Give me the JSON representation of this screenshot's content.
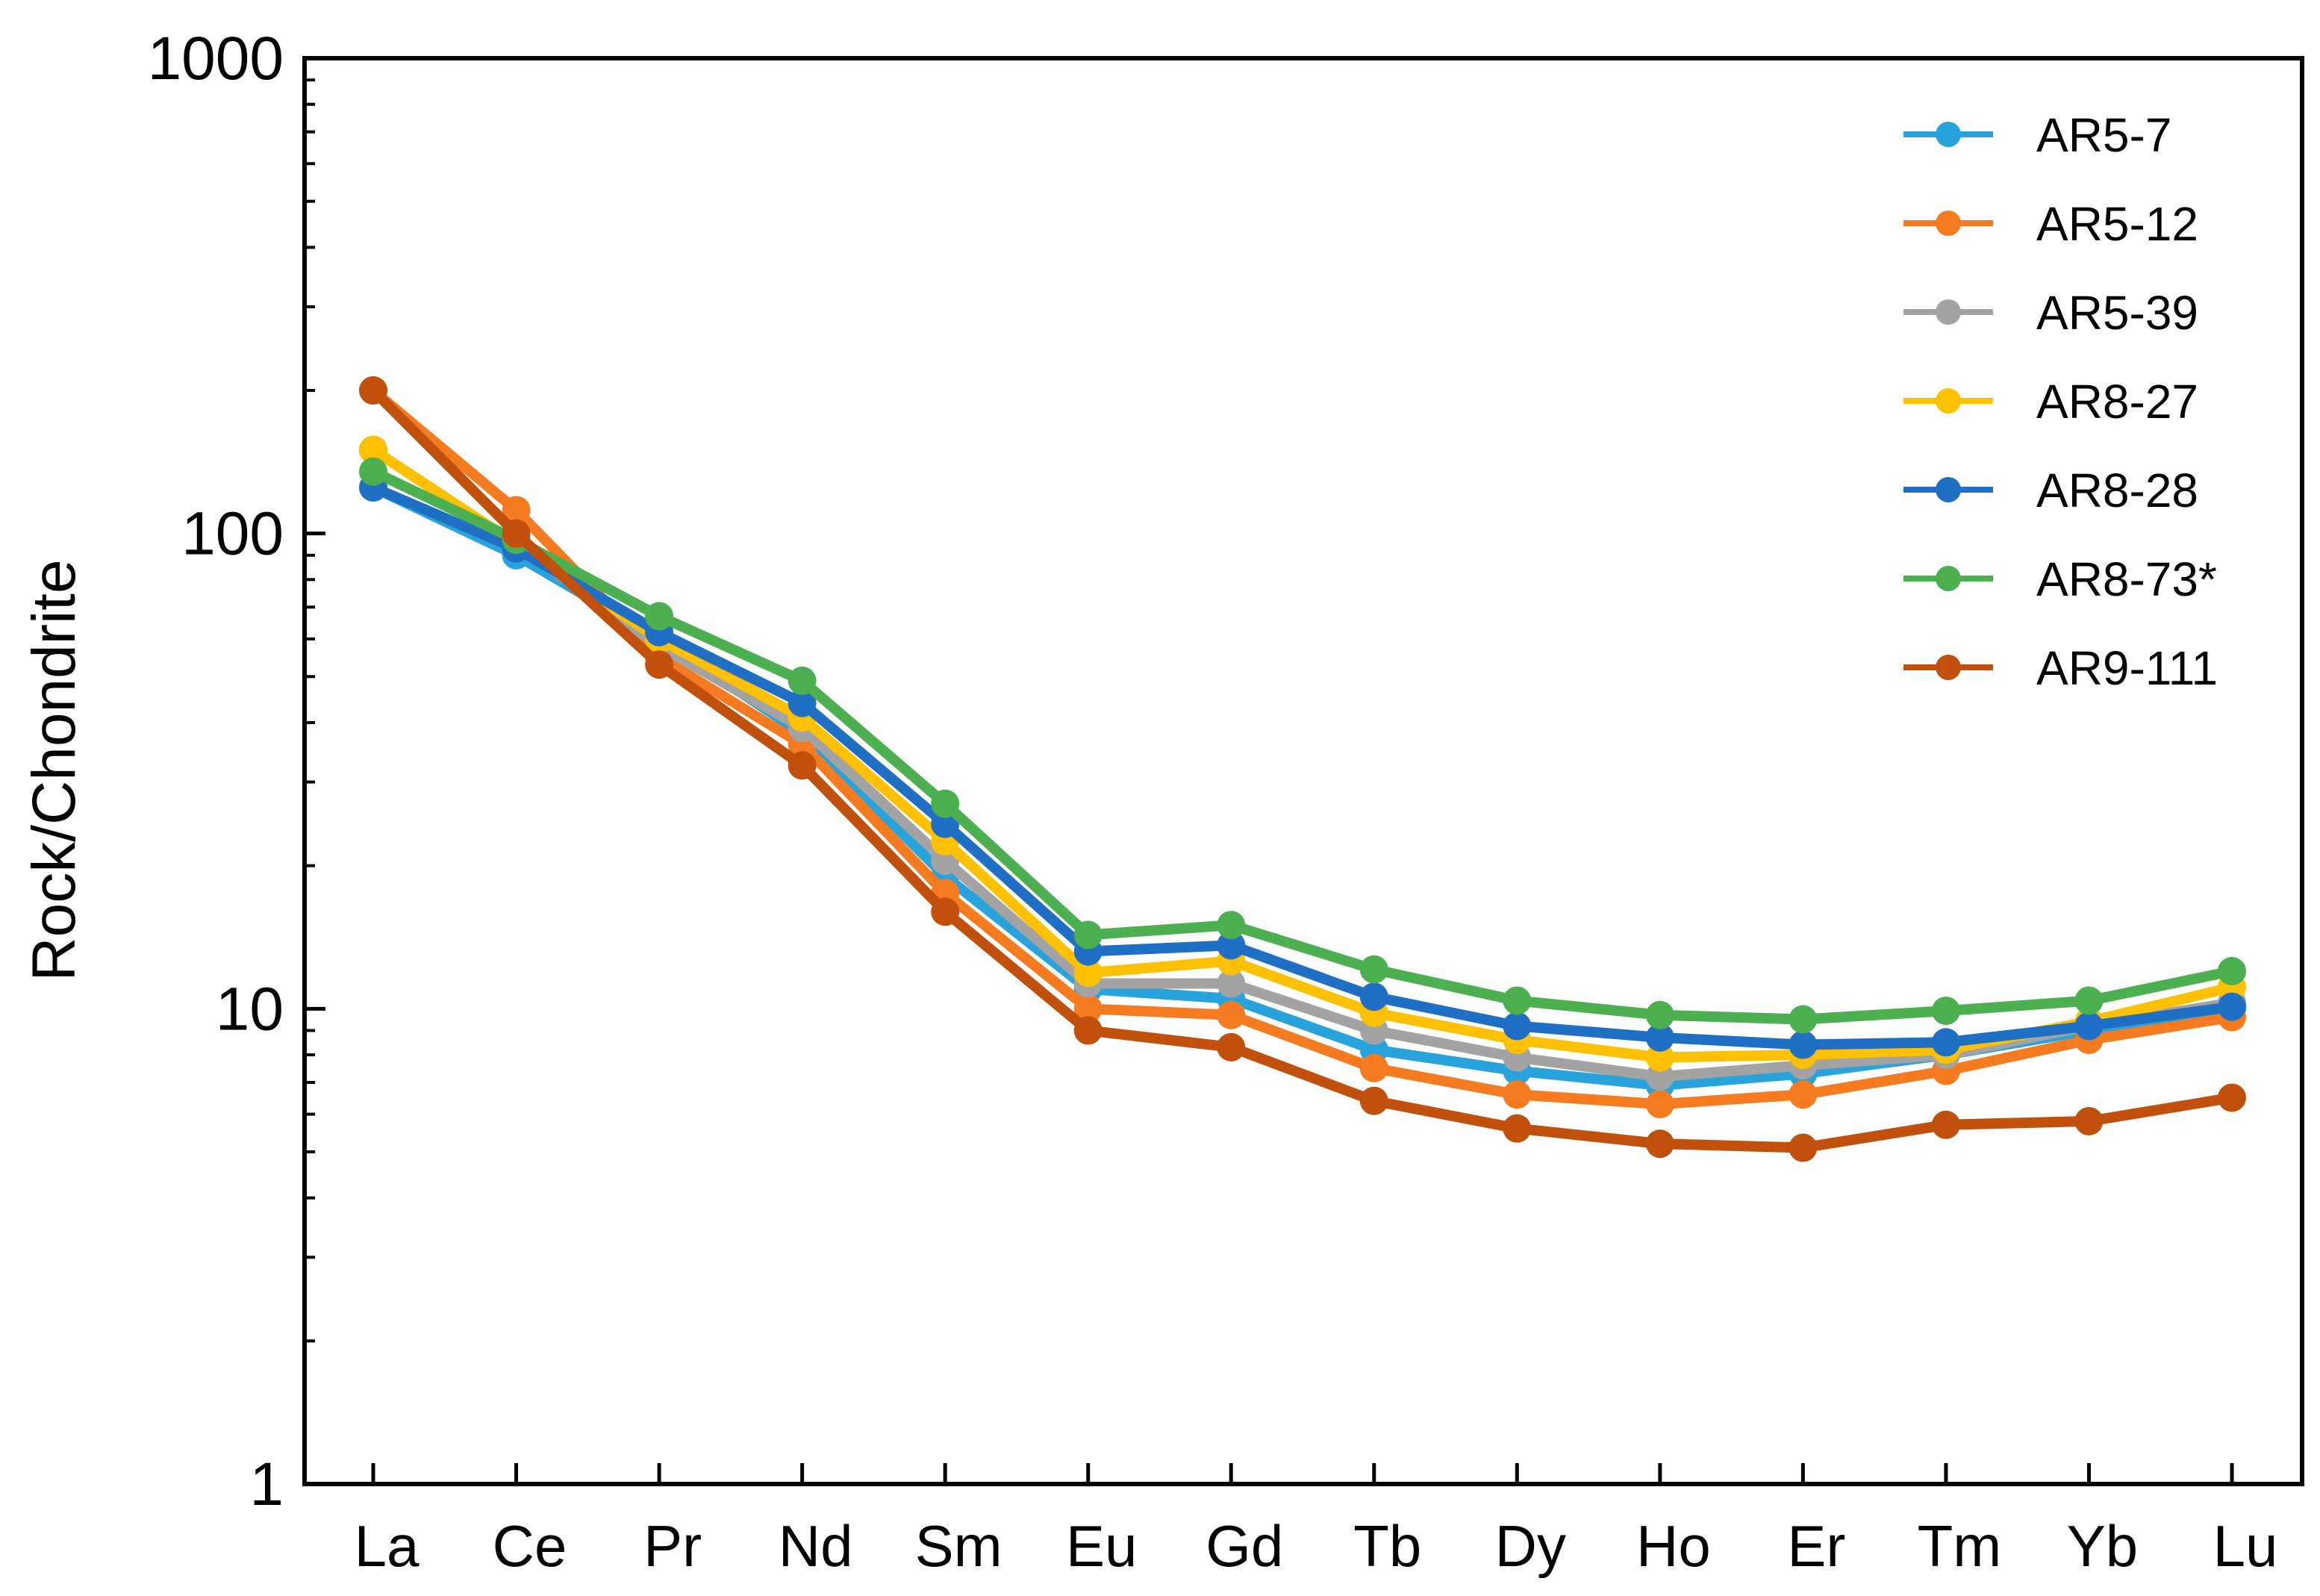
{
  "chart_data": {
    "type": "line",
    "title": "",
    "xlabel": "",
    "ylabel": "Rock/Chondrite",
    "yscale": "log",
    "ylim": [
      1,
      1000
    ],
    "y_ticks": [
      "1",
      "10",
      "100",
      "1000"
    ],
    "legend_position": "top-right",
    "grid": false,
    "categories": [
      "La",
      "Ce",
      "Pr",
      "Nd",
      "Sm",
      "Eu",
      "Gd",
      "Tb",
      "Dy",
      "Ho",
      "Er",
      "Tm",
      "Yb",
      "Lu"
    ],
    "series": [
      {
        "name": "AR5-7",
        "color": "#29A3DB",
        "values": [
          125,
          90,
          60,
          38,
          19,
          11,
          10.5,
          8.2,
          7.4,
          6.9,
          7.3,
          8.0,
          9.0,
          10.0
        ]
      },
      {
        "name": "AR5-12",
        "color": "#F47B20",
        "values": [
          200,
          112,
          55,
          36,
          17.5,
          10,
          9.7,
          7.5,
          6.6,
          6.3,
          6.6,
          7.4,
          8.6,
          9.6
        ]
      },
      {
        "name": "AR5-39",
        "color": "#A3A3A3",
        "values": [
          150,
          95,
          58,
          39,
          20.5,
          11.3,
          11.3,
          9.0,
          7.9,
          7.2,
          7.6,
          8.0,
          9.2,
          10.3
        ]
      },
      {
        "name": "AR8-27",
        "color": "#FFC000",
        "values": [
          150,
          95,
          60,
          41,
          22.5,
          11.9,
          12.6,
          9.8,
          8.6,
          7.9,
          8.0,
          8.2,
          9.4,
          11.1
        ]
      },
      {
        "name": "AR8-28",
        "color": "#1F6FC5",
        "values": [
          125,
          93,
          62,
          44,
          24.5,
          13.2,
          13.6,
          10.6,
          9.2,
          8.7,
          8.4,
          8.5,
          9.2,
          10.1
        ]
      },
      {
        "name": "AR8-73*",
        "color": "#4CAF50",
        "values": [
          135,
          97,
          67,
          49,
          27,
          14.3,
          15.0,
          12.1,
          10.4,
          9.7,
          9.5,
          9.9,
          10.4,
          12.0
        ]
      },
      {
        "name": "AR9-111",
        "color": "#C0500B",
        "values": [
          200,
          100,
          53,
          32.5,
          16,
          9.0,
          8.3,
          6.4,
          5.6,
          5.2,
          5.1,
          5.7,
          5.8,
          6.5
        ]
      }
    ]
  }
}
